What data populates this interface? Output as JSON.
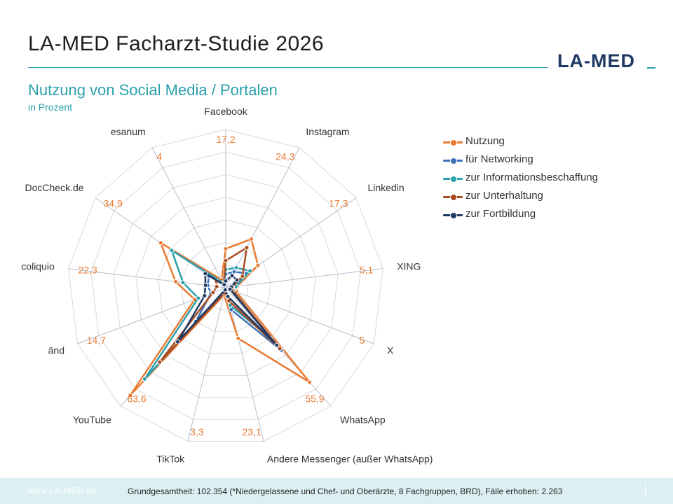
{
  "header": {
    "title": "LA-MED Facharzt-Studie 2026",
    "logo_text": "LA-MED"
  },
  "chart_data": {
    "type": "radar",
    "title": "Nutzung von Social Media / Portalen",
    "subtitle": "in Prozent",
    "axis_max": 70,
    "categories": [
      "Facebook",
      "Instagram",
      "Linkedin",
      "XING",
      "X",
      "WhatsApp",
      "Andere Messenger (außer WhatsApp)",
      "TikTok",
      "YouTube",
      "änd",
      "coliquio",
      "DocCheck.de",
      "esanum"
    ],
    "value_labels": [
      "17,2",
      "24,3",
      "17,3",
      "5,1",
      "5",
      "55,9",
      "23,1",
      "3,3",
      "63,6",
      "14,7",
      "22,3",
      "34,9",
      "4"
    ],
    "series": [
      {
        "name": "Nutzung",
        "color": "#ea7a32",
        "values": [
          17.2,
          24.3,
          17.3,
          5.1,
          5.0,
          55.9,
          23.1,
          3.3,
          63.6,
          14.7,
          22.3,
          34.9,
          4.0
        ]
      },
      {
        "name": "für Networking",
        "color": "#3d72b8",
        "values": [
          6.0,
          8.0,
          11.0,
          4.0,
          3.0,
          37.0,
          10.0,
          1.5,
          20.0,
          7.0,
          8.0,
          9.0,
          2.0
        ]
      },
      {
        "name": "zur Informationsbeschaffung",
        "color": "#2aa0ad",
        "values": [
          8.0,
          10.0,
          13.0,
          4.5,
          3.5,
          30.0,
          8.0,
          1.5,
          54.0,
          13.0,
          19.0,
          29.0,
          2.5
        ]
      },
      {
        "name": "zur Unterhaltung",
        "color": "#a84b1e",
        "values": [
          12.0,
          20.0,
          9.0,
          3.0,
          3.0,
          36.0,
          6.0,
          2.5,
          44.0,
          6.0,
          4.0,
          5.0,
          2.0
        ]
      },
      {
        "name": "zur Fortbildung",
        "color": "#1f3a64",
        "values": [
          3.0,
          6.0,
          6.0,
          2.5,
          2.0,
          34.0,
          4.0,
          1.0,
          32.0,
          10.0,
          9.0,
          11.0,
          1.5
        ]
      }
    ],
    "legend_position": "right",
    "grid": true
  },
  "footer": {
    "url": "www.LA-MED.de",
    "note": "Grundgesamtheit: 102.354 (*Niedergelassene und Chef- und Oberärzte, 8 Fachgruppen, BRD), Fälle erhoben: 2.263"
  }
}
